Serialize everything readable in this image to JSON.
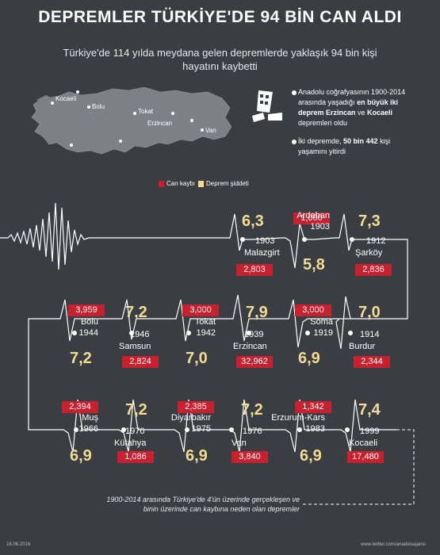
{
  "header": {
    "title": "DEPREMLER TÜRKİYE'DE 94 BİN CAN ALDI",
    "subtitle": "Türkiye'de 114 yılda meydana gelen depremlerde yaklaşık 94 bin kişi hayatını kaybetti"
  },
  "map": {
    "labels": [
      "Kocaeli",
      "Bolu",
      "Tokat",
      "Erzincan",
      "Van"
    ]
  },
  "info": {
    "line1_pre": "Anadolu coğrafyasının 1900-2014 arasında yaşadığı ",
    "line1_bold1": "en büyük iki deprem Erzincan",
    "line1_mid": " ve ",
    "line1_bold2": "Kocaeli",
    "line1_post": " depremleri oldu",
    "line2_pre": "İki depremde, ",
    "line2_bold": "50 bin 442",
    "line2_post": " kişi yaşamını yitirdi"
  },
  "legend": {
    "loss_label": "Can kaybı",
    "loss_color": "#c7212f",
    "intensity_label": "Deprem şiddeti",
    "intensity_color": "#f2dc95"
  },
  "earthquakes": [
    {
      "place": "Malazgirt",
      "year": "1903",
      "mag": "6,3",
      "loss": "2,803"
    },
    {
      "place": "Ardahan",
      "year": "1903",
      "mag": "5,8",
      "loss": "1,000"
    },
    {
      "place": "Şarköy",
      "year": "1912",
      "mag": "7,3",
      "loss": "2,836"
    },
    {
      "place": "Bolu",
      "year": "1944",
      "mag": "7,2",
      "loss": "3,959"
    },
    {
      "place": "Samsun",
      "year": "1946",
      "mag": "7,2",
      "loss": "2,824"
    },
    {
      "place": "Tokat",
      "year": "1942",
      "mag": "7,0",
      "loss": "3,000"
    },
    {
      "place": "Erzincan",
      "year": "1939",
      "mag": "7,9",
      "loss": "32,962"
    },
    {
      "place": "Soma",
      "year": "1919",
      "mag": "6,9",
      "loss": "3,000"
    },
    {
      "place": "Burdur",
      "year": "1914",
      "mag": "7,0",
      "loss": "2,344"
    },
    {
      "place": "Muş",
      "year": "1966",
      "mag": "6,9",
      "loss": "2,394"
    },
    {
      "place": "Kütahya",
      "year": "1970",
      "mag": "7,2",
      "loss": "1,086"
    },
    {
      "place": "Diyarbakır",
      "year": "1975",
      "mag": "6,9",
      "loss": "2,385"
    },
    {
      "place": "Van",
      "year": "1976",
      "mag": "7,2",
      "loss": "3,840"
    },
    {
      "place": "Erzurum-Kars",
      "year": "1983",
      "mag": "6,9",
      "loss": "1,342"
    },
    {
      "place": "Kocaeli",
      "year": "1999",
      "mag": "7,4",
      "loss": "17,480"
    }
  ],
  "footnote": "1900-2014 arasında Türkiye'de 4'ün üzerinde gerçekleşen ve binin üzerinde can kaybına neden olan depremler",
  "footer": {
    "date": "16.06.2016",
    "credit": "www.twitter.com/anadoluajansi"
  }
}
